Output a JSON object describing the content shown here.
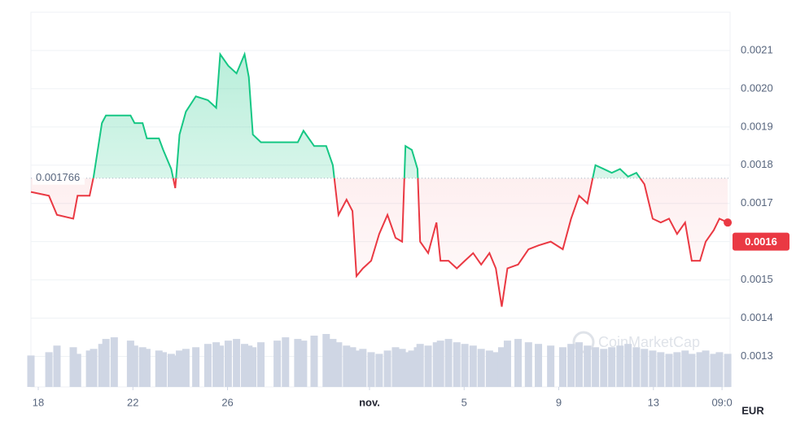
{
  "chart_data": {
    "type": "baseline-line",
    "x": [
      -0.31,
      0.45,
      0.79,
      1.48,
      1.66,
      2.17,
      2.34,
      2.69,
      2.86,
      3.21,
      3.9,
      4.07,
      4.41,
      4.59,
      5.1,
      5.28,
      5.62,
      5.79,
      5.97,
      6.24,
      6.66,
      7.17,
      7.52,
      7.69,
      8.03,
      8.38,
      8.72,
      8.9,
      9.07,
      9.41,
      10.1,
      10.45,
      10.97,
      11.21,
      11.66,
      12.17,
      12.45,
      12.69,
      13.03,
      13.28,
      13.45,
      13.72,
      14.07,
      14.41,
      14.76,
      15.1,
      15.38,
      15.52,
      15.79,
      16.03,
      16.14,
      16.48,
      16.83,
      17.0,
      17.34,
      17.69,
      18.03,
      18.38,
      18.72,
      19.07,
      19.34,
      19.59,
      19.83,
      20.28,
      20.72,
      21.14,
      21.66,
      22.17,
      22.52,
      22.86,
      23.21,
      23.55,
      23.9,
      24.24,
      24.59,
      24.93,
      25.28,
      25.62,
      25.97,
      26.31,
      26.66,
      27.0,
      27.34,
      27.62,
      27.97,
      28.21,
      28.55,
      28.79,
      29.14
    ],
    "values": [
      0.00173,
      0.00172,
      0.00167,
      0.00166,
      0.00172,
      0.00172,
      0.00177,
      0.00191,
      0.00193,
      0.00193,
      0.00193,
      0.00191,
      0.00191,
      0.00187,
      0.00187,
      0.00184,
      0.00179,
      0.00174,
      0.00188,
      0.00194,
      0.00198,
      0.00197,
      0.00195,
      0.00209,
      0.00206,
      0.00204,
      0.00209,
      0.00203,
      0.00188,
      0.00186,
      0.00186,
      0.00186,
      0.00186,
      0.00189,
      0.00185,
      0.00185,
      0.0018,
      0.00167,
      0.00171,
      0.00168,
      0.00151,
      0.00153,
      0.00155,
      0.00162,
      0.00167,
      0.00161,
      0.0016,
      0.00185,
      0.00184,
      0.00179,
      0.0016,
      0.00157,
      0.00165,
      0.00155,
      0.00155,
      0.00153,
      0.00155,
      0.00157,
      0.00154,
      0.00157,
      0.00153,
      0.00143,
      0.00153,
      0.00154,
      0.00158,
      0.00159,
      0.0016,
      0.00158,
      0.00166,
      0.00172,
      0.0017,
      0.0018,
      0.00179,
      0.00178,
      0.00179,
      0.00177,
      0.00178,
      0.00175,
      0.00166,
      0.00165,
      0.00166,
      0.00162,
      0.00165,
      0.00155,
      0.00155,
      0.0016,
      0.00163,
      0.00166,
      0.00165
    ],
    "volume": [
      38,
      42,
      50,
      48,
      40,
      44,
      46,
      52,
      58,
      60,
      56,
      50,
      48,
      46,
      44,
      42,
      40,
      38,
      44,
      46,
      48,
      52,
      54,
      50,
      56,
      58,
      52,
      50,
      48,
      54,
      56,
      60,
      58,
      56,
      62,
      64,
      58,
      54,
      50,
      48,
      44,
      46,
      42,
      40,
      44,
      48,
      46,
      42,
      44,
      48,
      52,
      50,
      54,
      56,
      58,
      54,
      52,
      50,
      46,
      44,
      42,
      48,
      56,
      58,
      54,
      52,
      50,
      48,
      52,
      54,
      50,
      48,
      46,
      48,
      50,
      52,
      48,
      46,
      44,
      42,
      40,
      42,
      44,
      40,
      42,
      44,
      40,
      42,
      40
    ],
    "baseline": 0.001766,
    "current_price": 0.0016,
    "up_color": "#16c784",
    "down_color": "#ea3943",
    "volume_color": "#cfd6e4",
    "xlim": [
      -0.31,
      29.24
    ],
    "ylim": [
      0.00122,
      0.0022
    ],
    "xticks": [
      {
        "value": 0,
        "label": "18"
      },
      {
        "value": 4,
        "label": "22"
      },
      {
        "value": 8,
        "label": "26"
      },
      {
        "value": 14,
        "label": "nov."
      },
      {
        "value": 18,
        "label": "5"
      },
      {
        "value": 22,
        "label": "9"
      },
      {
        "value": 26,
        "label": "13"
      },
      {
        "value": 28.9,
        "label": "09:0"
      }
    ],
    "yticks": [
      0.0013,
      0.0014,
      0.0015,
      0.0016,
      0.0017,
      0.0018,
      0.0019,
      {
        "value": 0.002,
        "label": "0.0020"
      },
      0.0021
    ],
    "grid": true,
    "currency": "EUR",
    "watermark": "CoinMarketCap"
  }
}
